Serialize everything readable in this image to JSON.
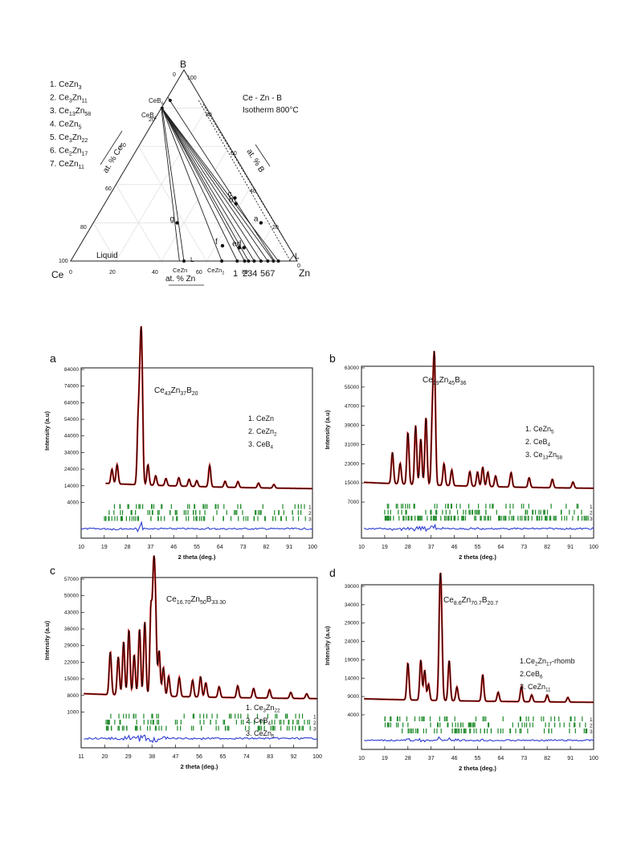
{
  "ternary": {
    "title_line1": "Ce - Zn - B",
    "title_line2": "Isotherm 800°C",
    "compounds": [
      {
        "n": "1.",
        "parts": [
          [
            "CeZn",
            ""
          ],
          [
            "3",
            "sub"
          ]
        ]
      },
      {
        "n": "2.",
        "parts": [
          [
            "Ce",
            ""
          ],
          [
            "3",
            "sub"
          ],
          [
            "Zn",
            ""
          ],
          [
            "11",
            "sub"
          ]
        ]
      },
      {
        "n": "3.",
        "parts": [
          [
            "Ce",
            ""
          ],
          [
            "13",
            "sub"
          ],
          [
            "Zn",
            ""
          ],
          [
            "58",
            "sub"
          ]
        ]
      },
      {
        "n": "4.",
        "parts": [
          [
            "CeZn",
            ""
          ],
          [
            "5",
            "sub"
          ]
        ]
      },
      {
        "n": "5.",
        "parts": [
          [
            "Ce",
            ""
          ],
          [
            "3",
            "sub"
          ],
          [
            "Zn",
            ""
          ],
          [
            "22",
            "sub"
          ]
        ]
      },
      {
        "n": "6.",
        "parts": [
          [
            "Ce",
            ""
          ],
          [
            "2",
            "sub"
          ],
          [
            "Zn",
            ""
          ],
          [
            "17",
            "sub"
          ]
        ]
      },
      {
        "n": "7.",
        "parts": [
          [
            "CeZn",
            ""
          ],
          [
            "11",
            "sub"
          ]
        ]
      }
    ],
    "vertex_B": "B",
    "vertex_Ce": "Ce",
    "vertex_Zn": "Zn",
    "axis_ce": "at. % Ce",
    "axis_b": "at. % B",
    "axis_zn": "at. % Zn",
    "left_ticks": [
      "0",
      "20",
      "40",
      "60",
      "80",
      "100"
    ],
    "right_ticks": [
      "100",
      "80",
      "60",
      "40",
      "20",
      "0"
    ],
    "bottom_ticks": [
      "0",
      "20",
      "40",
      "60",
      "80"
    ],
    "cb6": "CeB6",
    "cb4_main": "CeB",
    "cb4_sub": "4",
    "cb6_sub": "6",
    "liquid": "Liquid",
    "L_label": "L",
    "L_label2": "L",
    "cezn": "CeZn",
    "cezn2_main": "CeZn",
    "cezn2_sub": "2",
    "edge_numbers": "1  234  567",
    "points": [
      "a",
      "b",
      "c",
      "d",
      "e",
      "f",
      "g"
    ]
  },
  "panels": [
    {
      "letter": "a",
      "formula": [
        [
          "Ce",
          ""
        ],
        [
          "43",
          "sub"
        ],
        [
          "Zn",
          ""
        ],
        [
          "37",
          "sub"
        ],
        [
          "B",
          ""
        ],
        [
          "20",
          "sub"
        ]
      ],
      "legend": [
        [
          [
            "1. CeZn",
            ""
          ]
        ],
        [
          [
            "2. CeZn",
            ""
          ],
          [
            "2",
            "sub"
          ]
        ],
        [
          [
            "3. CeB",
            ""
          ],
          [
            "4",
            "sub"
          ]
        ]
      ],
      "yticks": [
        "84000",
        "74000",
        "64000",
        "54000",
        "44000",
        "34000",
        "24000",
        "14000",
        "4000"
      ],
      "xticks": [
        "10",
        "19",
        "28",
        "37",
        "46",
        "55",
        "64",
        "73",
        "82",
        "91",
        "100"
      ],
      "ylabel": "Intensity (a.u)",
      "xlabel": "2 theta (deg.)",
      "tick_rows": [
        "1",
        "2",
        "3"
      ]
    },
    {
      "letter": "b",
      "formula": [
        [
          "Ce",
          ""
        ],
        [
          "19",
          "sub"
        ],
        [
          "Zn",
          ""
        ],
        [
          "45",
          "sub"
        ],
        [
          "B",
          ""
        ],
        [
          "36",
          "sub"
        ]
      ],
      "legend": [
        [
          [
            "1. CeZn",
            ""
          ],
          [
            "5",
            "sub"
          ]
        ],
        [
          [
            "2. CeB",
            ""
          ],
          [
            "4",
            "sub"
          ]
        ],
        [
          [
            "3. Ce",
            ""
          ],
          [
            "13",
            "sub"
          ],
          [
            "Zn",
            ""
          ],
          [
            "58",
            "sub"
          ]
        ]
      ],
      "yticks": [
        "63000",
        "55000",
        "47000",
        "39000",
        "31000",
        "23000",
        "15000",
        "7000"
      ],
      "xticks": [
        "10",
        "19",
        "28",
        "37",
        "46",
        "55",
        "64",
        "73",
        "82",
        "91",
        "100"
      ],
      "ylabel": "Intensity (a.u)",
      "xlabel": "2 theta (deg.)",
      "tick_rows": [
        "1",
        "2",
        "3"
      ]
    },
    {
      "letter": "c",
      "formula": [
        [
          "Ce",
          ""
        ],
        [
          "16.70",
          "sub"
        ],
        [
          "Zn",
          ""
        ],
        [
          "50",
          "sub"
        ],
        [
          "B",
          ""
        ],
        [
          "33.30",
          "sub"
        ]
      ],
      "legend": [
        [
          [
            "1. Ce",
            ""
          ],
          [
            "3",
            "sub"
          ],
          [
            "Zn",
            ""
          ],
          [
            "22",
            "sub"
          ]
        ],
        [
          [
            "2. CeB",
            ""
          ],
          [
            "4",
            "sub"
          ]
        ],
        [
          [
            "3. CeZn",
            ""
          ],
          [
            "5",
            "sub"
          ]
        ]
      ],
      "yticks": [
        "57000",
        "50000",
        "43000",
        "36000",
        "29000",
        "22000",
        "15000",
        "8000",
        "1000"
      ],
      "xticks": [
        "11",
        "20",
        "29",
        "38",
        "47",
        "56",
        "65",
        "74",
        "83",
        "92",
        "100"
      ],
      "ylabel": "Intensity (a.u)",
      "xlabel": "2 theta (deg.)",
      "tick_rows": [
        "1",
        "2",
        "3"
      ]
    },
    {
      "letter": "d",
      "formula": [
        [
          "Ce",
          ""
        ],
        [
          "8.6",
          "sub"
        ],
        [
          "Zn",
          ""
        ],
        [
          "70.7",
          "sub"
        ],
        [
          "B",
          ""
        ],
        [
          "20.7",
          "sub"
        ]
      ],
      "legend": [
        [
          [
            "1.Ce",
            ""
          ],
          [
            "2",
            "sub"
          ],
          [
            "Zn",
            ""
          ],
          [
            "17",
            "sub"
          ],
          [
            "-rhomb",
            ""
          ]
        ],
        [
          [
            "2.CeB",
            ""
          ],
          [
            "6",
            "sub"
          ]
        ],
        [
          [
            "3. CeZn",
            ""
          ],
          [
            "11",
            "sub"
          ]
        ]
      ],
      "yticks": [
        "39000",
        "34000",
        "29000",
        "24000",
        "19000",
        "14000",
        "9000",
        "4000"
      ],
      "xticks": [
        "10",
        "19",
        "28",
        "37",
        "46",
        "55",
        "64",
        "73",
        "82",
        "91",
        "100"
      ],
      "ylabel": "Intensity (a.u)",
      "xlabel": "2 theta (deg.)",
      "tick_rows": [
        "1",
        "2",
        "3"
      ]
    }
  ],
  "colors": {
    "obs": "#e8231f",
    "calc": "#000000",
    "diff": "#2b3bd1",
    "bragg": "#1e8a2a"
  }
}
